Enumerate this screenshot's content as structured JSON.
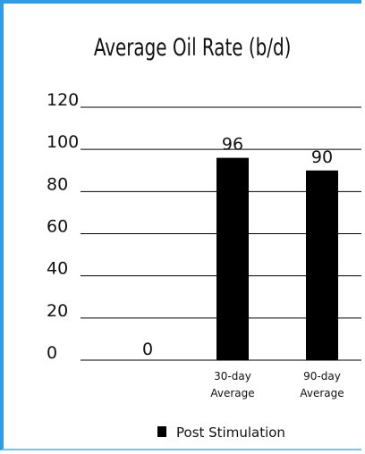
{
  "chart_data": {
    "type": "bar",
    "title": "Average Oil Rate (b/d)",
    "categories": [
      "",
      "30-day\nAverage",
      "90-day\nAverage"
    ],
    "series": [
      {
        "name": "Post Stimulation",
        "values": [
          0,
          96,
          90
        ],
        "color": "#000000"
      }
    ],
    "data_labels": [
      "0",
      "96",
      "90"
    ],
    "ylim": [
      0,
      120
    ],
    "yticks": [
      0,
      20,
      40,
      60,
      80,
      100,
      120
    ],
    "grid": true,
    "legend": "bottom"
  }
}
